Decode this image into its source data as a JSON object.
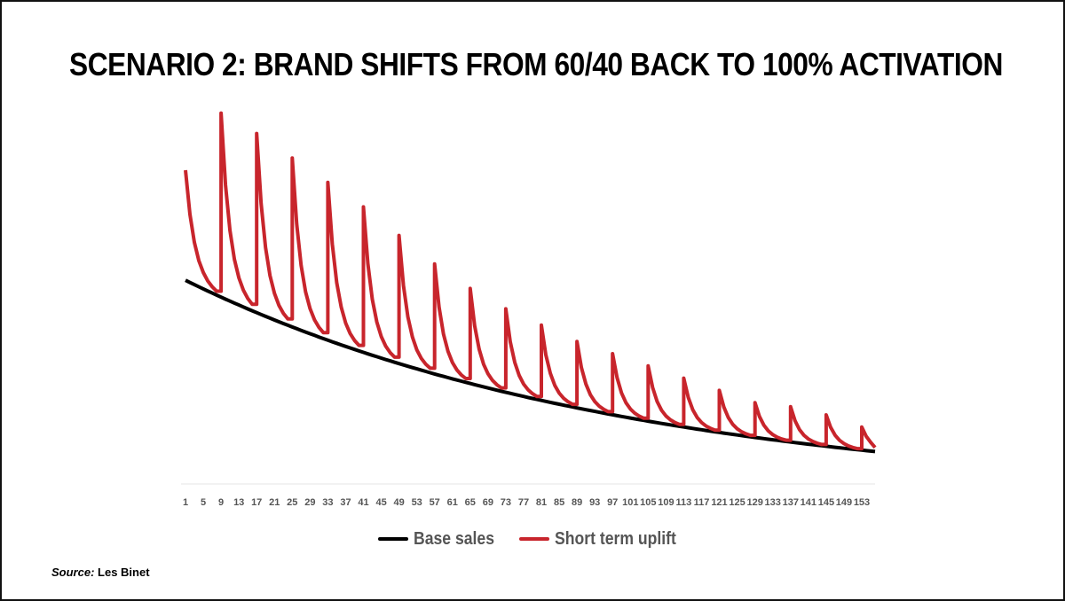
{
  "slide": {
    "title": "SCENARIO 2: BRAND SHIFTS FROM 60/40 BACK TO 100% ACTIVATION",
    "source_prefix": "Source:",
    "source_text": " Les Binet"
  },
  "chart_data": {
    "type": "line",
    "title": "",
    "xlabel": "",
    "ylabel": "",
    "x_start": 1,
    "x_end": 156,
    "x_tick_labels": [
      "1",
      "5",
      "9",
      "13",
      "17",
      "21",
      "25",
      "29",
      "33",
      "37",
      "41",
      "45",
      "49",
      "53",
      "57",
      "61",
      "65",
      "69",
      "73",
      "77",
      "81",
      "85",
      "89",
      "93",
      "97",
      "101",
      "105",
      "109",
      "113",
      "117",
      "121",
      "125",
      "129",
      "133",
      "137",
      "141",
      "145",
      "149",
      "153"
    ],
    "ylim": [
      0,
      100
    ],
    "axis_visible": false,
    "grid": false,
    "legend_position": "bottom",
    "series": [
      {
        "name": "Base sales",
        "color": "#000000",
        "curve": "exponential_decay",
        "start_value": 53,
        "end_value": 11
      },
      {
        "name": "Short term uplift",
        "color": "#c8252c",
        "curve": "base_plus_decaying_spikes",
        "spike_weeks": [
          1,
          9,
          17,
          25,
          33,
          41,
          49,
          57,
          65,
          73,
          81,
          89,
          97,
          105,
          113,
          121,
          129,
          137,
          145,
          153
        ],
        "spike_peaks": [
          80,
          94,
          89,
          83,
          77,
          71,
          64,
          57,
          51,
          46,
          42,
          38,
          35,
          32,
          29,
          26,
          23,
          22,
          20,
          17
        ],
        "end_value": 12
      }
    ]
  }
}
